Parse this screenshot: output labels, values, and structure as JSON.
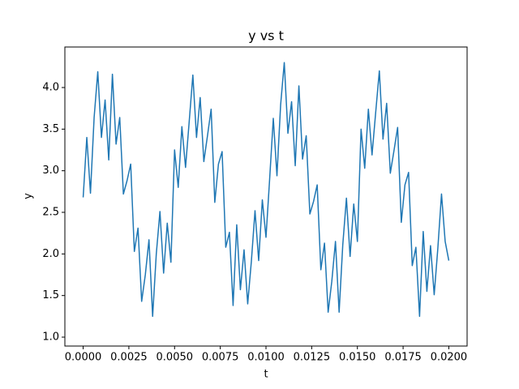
{
  "chart_data": {
    "type": "line",
    "title": "y vs t",
    "x_label": "t",
    "y_label": "y",
    "color": "#1f77b4",
    "grid": false,
    "x": [
      0,
      0.0002,
      0.0004,
      0.0006,
      0.0008,
      0.001,
      0.0012,
      0.0014,
      0.0016,
      0.0018,
      0.002,
      0.0022,
      0.0024,
      0.0026,
      0.0028,
      0.003,
      0.0032,
      0.0034,
      0.0036,
      0.0038,
      0.004,
      0.0042,
      0.0044,
      0.0046,
      0.0048,
      0.005,
      0.0052,
      0.0054,
      0.0056,
      0.0058,
      0.006,
      0.0062,
      0.0064,
      0.0066,
      0.0068,
      0.007,
      0.0072,
      0.0074,
      0.0076,
      0.0078,
      0.008,
      0.0082,
      0.0084,
      0.0086,
      0.0088,
      0.009,
      0.0092,
      0.0094,
      0.0096,
      0.0098,
      0.01,
      0.0102,
      0.0104,
      0.0106,
      0.0108,
      0.011,
      0.0112,
      0.0114,
      0.0116,
      0.0118,
      0.012,
      0.0122,
      0.0124,
      0.0126,
      0.0128,
      0.013,
      0.0132,
      0.0134,
      0.0136,
      0.0138,
      0.014,
      0.0142,
      0.0144,
      0.0146,
      0.0148,
      0.015,
      0.0152,
      0.0154,
      0.0156,
      0.0158,
      0.016,
      0.0162,
      0.0164,
      0.0166,
      0.0168,
      0.017,
      0.0172,
      0.0174,
      0.0176,
      0.0178,
      0.018,
      0.0182,
      0.0184,
      0.0186,
      0.0188,
      0.019,
      0.0192,
      0.0194,
      0.0196,
      0.0198,
      0.02
    ],
    "values": [
      2.68,
      3.4,
      2.73,
      3.64,
      4.19,
      3.4,
      3.85,
      3.13,
      4.16,
      3.32,
      3.64,
      2.72,
      2.88,
      3.08,
      2.03,
      2.31,
      1.43,
      1.75,
      2.17,
      1.25,
      2.0,
      2.51,
      1.77,
      2.37,
      1.9,
      3.25,
      2.8,
      3.53,
      3.04,
      3.59,
      4.15,
      3.4,
      3.88,
      3.11,
      3.42,
      3.74,
      2.62,
      3.08,
      3.23,
      2.08,
      2.26,
      1.38,
      2.35,
      1.57,
      2.05,
      1.4,
      1.91,
      2.52,
      1.92,
      2.65,
      2.2,
      2.9,
      3.63,
      2.94,
      3.79,
      4.3,
      3.45,
      3.83,
      3.06,
      4.02,
      3.14,
      3.42,
      2.48,
      2.63,
      2.83,
      1.81,
      2.13,
      1.3,
      1.67,
      2.15,
      1.3,
      2.11,
      2.67,
      1.97,
      2.6,
      2.15,
      3.5,
      3.03,
      3.74,
      3.19,
      3.7,
      4.2,
      3.38,
      3.81,
      2.97,
      3.24,
      3.52,
      2.38,
      2.83,
      2.98,
      1.86,
      2.08,
      1.25,
      2.27,
      1.55,
      2.1,
      1.51,
      2.07,
      2.72,
      2.15,
      1.92
    ],
    "xlim": [
      -0.001,
      0.021
    ],
    "xticks": [
      {
        "value": 0,
        "label": "0.0000"
      },
      {
        "value": 0.0025,
        "label": "0.0025"
      },
      {
        "value": 0.005,
        "label": "0.0050"
      },
      {
        "value": 0.0075,
        "label": "0.0075"
      },
      {
        "value": 0.01,
        "label": "0.0100"
      },
      {
        "value": 0.0125,
        "label": "0.0125"
      },
      {
        "value": 0.015,
        "label": "0.0150"
      },
      {
        "value": 0.0175,
        "label": "0.0175"
      },
      {
        "value": 0.02,
        "label": "0.0200"
      }
    ],
    "ylim": [
      0.893,
      4.487
    ],
    "yticks": [
      {
        "value": 1,
        "label": "1.0"
      },
      {
        "value": 1.5,
        "label": "1.5"
      },
      {
        "value": 2,
        "label": "2.0"
      },
      {
        "value": 2.5,
        "label": "2.5"
      },
      {
        "value": 3,
        "label": "3.0"
      },
      {
        "value": 3.5,
        "label": "3.5"
      },
      {
        "value": 4,
        "label": "4.0"
      }
    ]
  }
}
